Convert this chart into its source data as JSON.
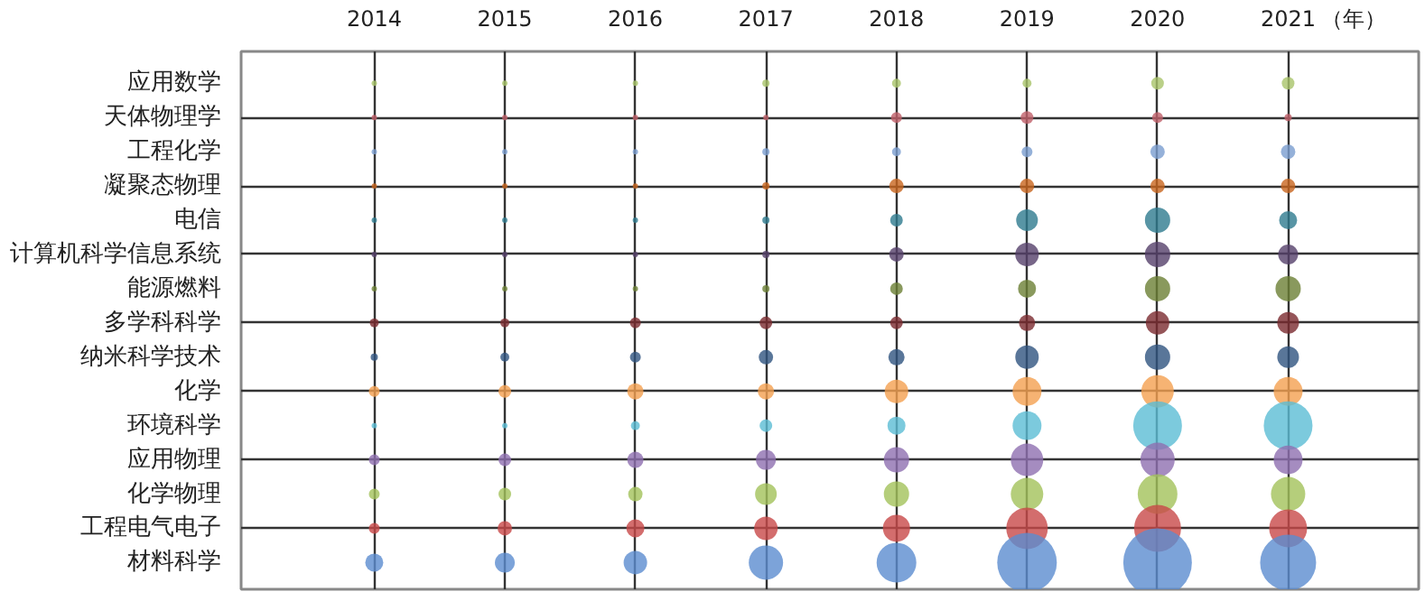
{
  "chart_data": {
    "type": "bubble",
    "orientation": "horizontal",
    "xlabel": "（年）",
    "categories": [
      "应用数学",
      "天体物理学",
      "工程化学",
      "凝聚态物理",
      "电信",
      "计算机科学信息系统",
      "能源燃料",
      "多学科科学",
      "纳米科学技术",
      "化学",
      "环境科学",
      "应用物理",
      "化学物理",
      "工程电气电子",
      "材料科学"
    ],
    "xlim": [
      2012.98,
      2022
    ],
    "xticks": [
      2014,
      2015,
      2016,
      2017,
      2018,
      2019,
      2020,
      2021
    ],
    "series": [
      {
        "values": [
          2014,
          2014,
          2014,
          2014,
          2014,
          2014,
          2014,
          2014,
          2014,
          2014,
          2014,
          2014,
          2014,
          2014,
          2014
        ],
        "sizes": [
          0.006,
          0.006,
          0.006,
          0.006,
          0.006,
          0.006,
          0.006,
          0.017,
          0.011,
          0.025,
          0.006,
          0.025,
          0.025,
          0.025,
          0.069
        ],
        "colors": [
          "#a9c46a",
          "#c0606a",
          "#7a9dd0",
          "#c8651e",
          "#2e7a8f",
          "#55406a",
          "#6b8035",
          "#7a2a30",
          "#2f5480",
          "#f4a050",
          "#5bbdd4",
          "#8e6fb0",
          "#a3c25a",
          "#c84848",
          "#5b8cd0"
        ]
      },
      {
        "values": [
          2015,
          2015,
          2015,
          2015,
          2015,
          2015,
          2015,
          2015,
          2015,
          2015,
          2015,
          2015,
          2015,
          2015,
          2015
        ],
        "sizes": [
          0.006,
          0.006,
          0.006,
          0.006,
          0.006,
          0.006,
          0.006,
          0.017,
          0.017,
          0.034,
          0.006,
          0.034,
          0.034,
          0.044,
          0.084
        ],
        "colors": [
          "#a9c46a",
          "#c0606a",
          "#7a9dd0",
          "#c8651e",
          "#2e7a8f",
          "#55406a",
          "#6b8035",
          "#7a2a30",
          "#2f5480",
          "#f4a050",
          "#5bbdd4",
          "#8e6fb0",
          "#a3c25a",
          "#c84848",
          "#5b8cd0"
        ]
      },
      {
        "values": [
          2016,
          2016,
          2016,
          2016,
          2016,
          2016,
          2016,
          2016,
          2016,
          2016,
          2016,
          2016,
          2016,
          2016,
          2016
        ],
        "sizes": [
          0.006,
          0.006,
          0.006,
          0.006,
          0.006,
          0.006,
          0.006,
          0.025,
          0.025,
          0.056,
          0.017,
          0.056,
          0.044,
          0.069,
          0.117
        ],
        "colors": [
          "#a9c46a",
          "#c0606a",
          "#7a9dd0",
          "#c8651e",
          "#2e7a8f",
          "#55406a",
          "#6b8035",
          "#7a2a30",
          "#2f5480",
          "#f4a050",
          "#5bbdd4",
          "#8e6fb0",
          "#a3c25a",
          "#c84848",
          "#5b8cd0"
        ]
      },
      {
        "values": [
          2017,
          2017,
          2017,
          2017,
          2017,
          2017,
          2017,
          2017,
          2017,
          2017,
          2017,
          2017,
          2017,
          2017,
          2017
        ],
        "sizes": [
          0.011,
          0.006,
          0.011,
          0.011,
          0.011,
          0.011,
          0.011,
          0.034,
          0.044,
          0.056,
          0.034,
          0.084,
          0.1,
          0.117,
          0.25
        ],
        "colors": [
          "#a9c46a",
          "#c0606a",
          "#7a9dd0",
          "#c8651e",
          "#2e7a8f",
          "#55406a",
          "#6b8035",
          "#7a2a30",
          "#2f5480",
          "#f4a050",
          "#5bbdd4",
          "#8e6fb0",
          "#a3c25a",
          "#c84848",
          "#5b8cd0"
        ]
      },
      {
        "values": [
          2018,
          2018,
          2018,
          2018,
          2018,
          2018,
          2018,
          2018,
          2018,
          2018,
          2018,
          2018,
          2018,
          2018,
          2018
        ],
        "sizes": [
          0.017,
          0.025,
          0.017,
          0.044,
          0.034,
          0.044,
          0.034,
          0.034,
          0.056,
          0.117,
          0.069,
          0.136,
          0.136,
          0.156,
          0.335
        ],
        "colors": [
          "#a9c46a",
          "#c0606a",
          "#7a9dd0",
          "#c8651e",
          "#2e7a8f",
          "#55406a",
          "#6b8035",
          "#7a2a30",
          "#2f5480",
          "#f4a050",
          "#5bbdd4",
          "#8e6fb0",
          "#a3c25a",
          "#c84848",
          "#5b8cd0"
        ]
      },
      {
        "values": [
          2019,
          2019,
          2019,
          2019,
          2019,
          2019,
          2019,
          2019,
          2019,
          2019,
          2019,
          2019,
          2019,
          2019,
          2019
        ],
        "sizes": [
          0.017,
          0.034,
          0.025,
          0.044,
          0.1,
          0.117,
          0.069,
          0.056,
          0.117,
          0.177,
          0.177,
          0.224,
          0.224,
          0.366,
          0.754
        ],
        "colors": [
          "#a9c46a",
          "#c0606a",
          "#7a9dd0",
          "#c8651e",
          "#2e7a8f",
          "#55406a",
          "#6b8035",
          "#7a2a30",
          "#2f5480",
          "#f4a050",
          "#5bbdd4",
          "#8e6fb0",
          "#a3c25a",
          "#c84848",
          "#5b8cd0"
        ]
      },
      {
        "values": [
          2020,
          2020,
          2020,
          2020,
          2020,
          2020,
          2020,
          2020,
          2020,
          2020,
          2020,
          2020,
          2020,
          2020,
          2020
        ],
        "sizes": [
          0.034,
          0.025,
          0.044,
          0.044,
          0.136,
          0.136,
          0.136,
          0.117,
          0.136,
          0.224,
          0.505,
          0.25,
          0.335,
          0.468,
          1
        ],
        "colors": [
          "#a9c46a",
          "#c0606a",
          "#7a9dd0",
          "#c8651e",
          "#2e7a8f",
          "#55406a",
          "#6b8035",
          "#7a2a30",
          "#2f5480",
          "#f4a050",
          "#5bbdd4",
          "#8e6fb0",
          "#a3c25a",
          "#c84848",
          "#5b8cd0"
        ]
      },
      {
        "values": [
          2021,
          2021,
          2021,
          2021,
          2021,
          2021,
          2021,
          2021,
          2021,
          2021,
          2021,
          2021,
          2021,
          2021,
          2021
        ],
        "sizes": [
          0.034,
          0.011,
          0.044,
          0.044,
          0.069,
          0.084,
          0.136,
          0.1,
          0.1,
          0.177,
          0.505,
          0.177,
          0.25,
          0.305,
          0.666
        ],
        "colors": [
          "#a9c46a",
          "#c0606a",
          "#7a9dd0",
          "#c8651e",
          "#2e7a8f",
          "#55406a",
          "#6b8035",
          "#7a2a30",
          "#2f5480",
          "#f4a050",
          "#5bbdd4",
          "#8e6fb0",
          "#a3c25a",
          "#c84848",
          "#5b8cd0"
        ]
      }
    ],
    "grid": true
  }
}
